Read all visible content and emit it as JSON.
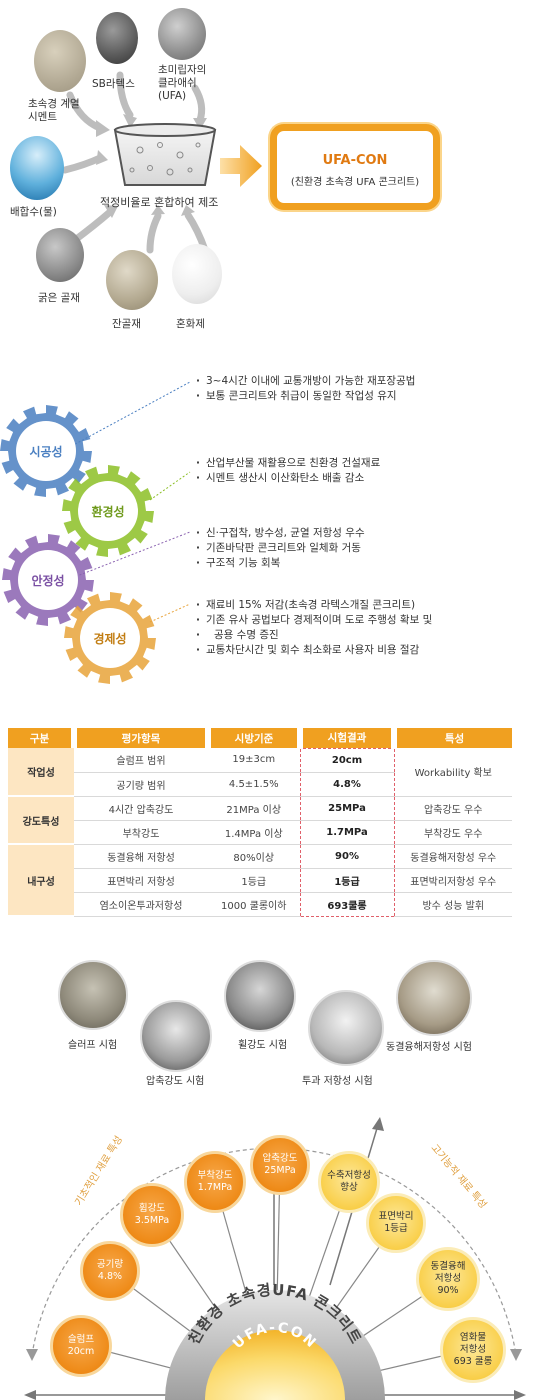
{
  "process": {
    "ingredients": [
      {
        "label": "초속경 계열\n시멘트"
      },
      {
        "label": "SB라텍스"
      },
      {
        "label": "초미립자의\n클라애쉬\n(UFA)"
      },
      {
        "label": "배합수(물)"
      },
      {
        "label": "굵은 골재"
      },
      {
        "label": "잔골재"
      },
      {
        "label": "혼화제"
      }
    ],
    "bowl_caption": "적정비율로 혼합하여 제조",
    "product_title": "UFA-CON",
    "product_subtitle": "(친환경 초속경 UFA 콘크리트)"
  },
  "gears": [
    {
      "label": "시공성",
      "color": "#4a7fc1",
      "bullets": [
        "3~4시간 이내에 교통개방이 가능한 재포장공법",
        "보통 콘크리트와 취급이 동일한 작업성 유지"
      ]
    },
    {
      "label": "환경성",
      "color": "#8cbf26",
      "bullets": [
        "산업부산물 재활용으로 친환경 건설재료",
        "시멘트 생산시 이산화탄소 배출 감소"
      ]
    },
    {
      "label": "안정성",
      "color": "#8a62b0",
      "bullets": [
        "신·구접착, 방수성, 균열 저항성 우수",
        "기존바닥판 콘크리트와 일체화 거동",
        "구조적 기능 회복"
      ]
    },
    {
      "label": "경제성",
      "color": "#e8a33a",
      "bullets": [
        "재료비 15% 저감(초속경 라텍스개질 콘크리트)",
        "기존 유사 공법보다 경제적이며 도로 주행성 확보 및",
        "공용 수명 증진",
        "교통차단시간 및 회수 최소화로 사용자 비용 절감"
      ]
    }
  ],
  "table": {
    "headers": [
      "구분",
      "평가항목",
      "시방기준",
      "시험결과",
      "특성"
    ],
    "groups": [
      {
        "name": "작업성",
        "rows": [
          {
            "item": "슬럼프 범위",
            "spec": "19±3cm",
            "result": "20cm"
          },
          {
            "item": "공기량 범위",
            "spec": "4.5±1.5%",
            "result": "4.8%"
          }
        ],
        "feature": "Workability 확보"
      },
      {
        "name": "강도특성",
        "rows": [
          {
            "item": "4시간 압축강도",
            "spec": "21MPa 이상",
            "result": "25MPa",
            "feature": "압축강도 우수"
          },
          {
            "item": "부착강도",
            "spec": "1.4MPa 이상",
            "result": "1.7MPa",
            "feature": "부착강도 우수"
          }
        ]
      },
      {
        "name": "내구성",
        "rows": [
          {
            "item": "동결융해 저항성",
            "spec": "80%이상",
            "result": "90%",
            "feature": "동결융해저항성 우수"
          },
          {
            "item": "표면박리 저항성",
            "spec": "1등급",
            "result": "1등급",
            "feature": "표면박리저항성 우수"
          },
          {
            "item": "염소이온투과저항성",
            "spec": "1000 쿨롱이하",
            "result": "693쿨롱",
            "feature": "방수 성능 발휘"
          }
        ]
      }
    ]
  },
  "tests": [
    {
      "label": "슬러프 시험"
    },
    {
      "label": "압축강도 시험"
    },
    {
      "label": "휠강도 시험"
    },
    {
      "label": "투과 저항성 시험"
    },
    {
      "label": "동결융해저항성 시험"
    }
  ],
  "arc": {
    "left_caption": "기초적인 재료 특성",
    "right_caption": "고기능적 재료 특성",
    "band_text": "친환경 초속경UFA 콘크리트",
    "center_text": "UFA-CON",
    "circles": [
      {
        "text": "슬럼프\n20cm",
        "tone": "orange"
      },
      {
        "text": "공기량\n4.8%",
        "tone": "orange"
      },
      {
        "text": "휨강도\n3.5MPa",
        "tone": "orange"
      },
      {
        "text": "부착강도\n1.7MPa",
        "tone": "orange"
      },
      {
        "text": "압축강도\n25MPa",
        "tone": "orange"
      },
      {
        "text": "수축저항성\n향상",
        "tone": "yellow"
      },
      {
        "text": "표면박리\n1등급",
        "tone": "yellow"
      },
      {
        "text": "동결융해\n저항성\n90%",
        "tone": "yellow"
      },
      {
        "text": "염화물\n저항성\n693 쿨롱",
        "tone": "yellow"
      }
    ]
  }
}
